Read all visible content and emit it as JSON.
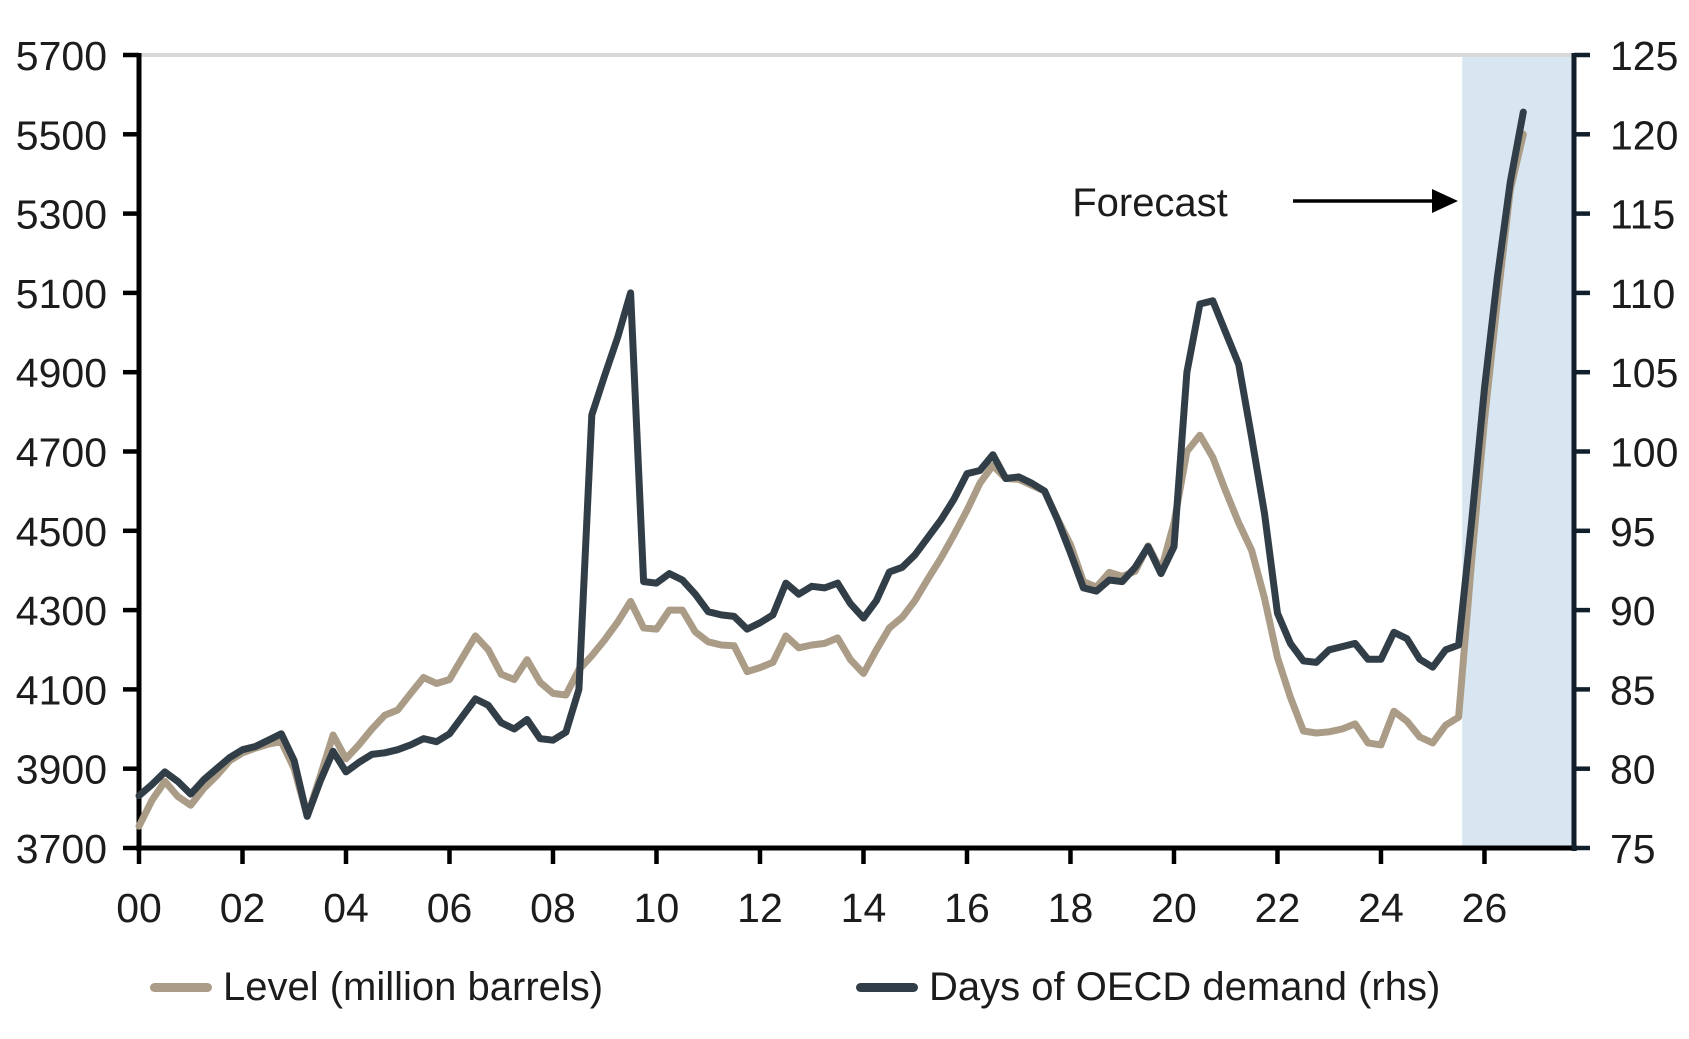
{
  "chart_data": {
    "type": "line",
    "title": "",
    "x_unit": "year",
    "x_start": 2000,
    "x_step": 0.25,
    "x_min": 2000,
    "x_max": 2027.73,
    "x_tick_years": [
      2000,
      2002,
      2004,
      2006,
      2008,
      2010,
      2012,
      2014,
      2016,
      2018,
      2020,
      2022,
      2024,
      2026
    ],
    "x_tick_labels": [
      "00",
      "02",
      "04",
      "06",
      "08",
      "10",
      "12",
      "14",
      "16",
      "18",
      "20",
      "22",
      "24",
      "26"
    ],
    "left_axis": {
      "min": 3700,
      "max": 5700,
      "step": 200,
      "color": "#000000"
    },
    "right_axis": {
      "min": 75,
      "max": 125,
      "step": 5,
      "color": "#101f2b"
    },
    "grid_top_color": "#d9d9d9",
    "tick_label_color": "#1c1c1c",
    "forecast_band": {
      "start": 2025.57,
      "end": 2027.73,
      "color": "#d8e6f1"
    },
    "annotation": {
      "text": "Forecast",
      "arrow_color": "#000000"
    },
    "series": [
      {
        "name": "Level (million barrels)",
        "axis": "left",
        "color": "#ab9c87",
        "values": [
          3755,
          3820,
          3868,
          3830,
          3808,
          3850,
          3882,
          3920,
          3940,
          3952,
          3962,
          3968,
          3900,
          3780,
          3880,
          3985,
          3925,
          3960,
          4000,
          4035,
          4048,
          4090,
          4130,
          4115,
          4125,
          4180,
          4235,
          4200,
          4138,
          4125,
          4175,
          4118,
          4090,
          4086,
          4150,
          4185,
          4225,
          4270,
          4322,
          4255,
          4252,
          4300,
          4300,
          4245,
          4220,
          4212,
          4210,
          4145,
          4155,
          4168,
          4235,
          4205,
          4212,
          4216,
          4230,
          4175,
          4140,
          4200,
          4255,
          4282,
          4325,
          4380,
          4432,
          4490,
          4552,
          4620,
          4665,
          4632,
          4630,
          4615,
          4600,
          4530,
          4465,
          4372,
          4358,
          4395,
          4385,
          4398,
          4462,
          4400,
          4520,
          4700,
          4741,
          4685,
          4600,
          4520,
          4451,
          4330,
          4180,
          4080,
          3995,
          3990,
          3993,
          4000,
          4013,
          3965,
          3960,
          4045,
          4020,
          3980,
          3965,
          4010,
          4030,
          4420,
          4780,
          5080,
          5360,
          5500
        ]
      },
      {
        "name": "Days of OECD demand (rhs)",
        "axis": "right",
        "color": "#313e47",
        "values": [
          78.3,
          79.0,
          79.8,
          79.2,
          78.4,
          79.3,
          80.0,
          80.7,
          81.2,
          81.4,
          81.8,
          82.2,
          80.5,
          77.0,
          79.2,
          81.1,
          79.8,
          80.4,
          80.9,
          81.0,
          81.2,
          81.5,
          81.9,
          81.7,
          82.2,
          83.3,
          84.4,
          84.0,
          82.9,
          82.5,
          83.1,
          81.9,
          81.8,
          82.3,
          85.0,
          102.3,
          104.8,
          107.2,
          110.0,
          91.8,
          91.7,
          92.3,
          91.9,
          91.0,
          89.9,
          89.7,
          89.6,
          88.8,
          89.2,
          89.7,
          91.7,
          91.0,
          91.5,
          91.4,
          91.7,
          90.4,
          89.5,
          90.6,
          92.4,
          92.7,
          93.5,
          94.6,
          95.7,
          97.0,
          98.6,
          98.8,
          99.8,
          98.3,
          98.4,
          98.0,
          97.5,
          95.7,
          93.6,
          91.4,
          91.2,
          91.9,
          91.8,
          92.7,
          94.0,
          92.3,
          94.0,
          105.0,
          109.3,
          109.5,
          107.5,
          105.5,
          100.9,
          96.1,
          89.8,
          87.9,
          86.8,
          86.7,
          87.5,
          87.7,
          87.9,
          86.9,
          86.9,
          88.6,
          88.2,
          86.9,
          86.4,
          87.5,
          87.8,
          95.5,
          104.0,
          111.0,
          117.0,
          121.4
        ]
      }
    ],
    "legend_position": "bottom"
  }
}
